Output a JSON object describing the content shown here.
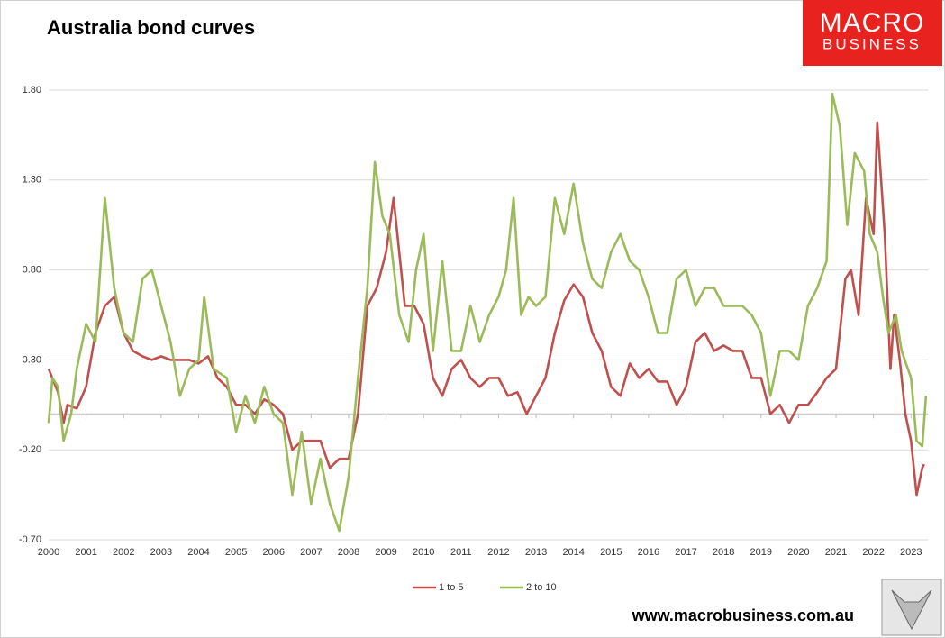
{
  "chart_data": {
    "type": "line",
    "title": "Australia bond curves",
    "brand": {
      "line1": "MACRO",
      "line2": "BUSINESS",
      "website": "www.macrobusiness.com.au"
    },
    "xlim": [
      2000,
      2023.45
    ],
    "xticks": [
      2000,
      2001,
      2002,
      2003,
      2004,
      2005,
      2006,
      2007,
      2008,
      2009,
      2010,
      2011,
      2012,
      2013,
      2014,
      2015,
      2016,
      2017,
      2018,
      2019,
      2020,
      2021,
      2022,
      2023
    ],
    "ylim": [
      -0.7,
      1.8
    ],
    "yticks": [
      {
        "value": 1.8,
        "label": "1.80"
      },
      {
        "value": 1.3,
        "label": "1.30"
      },
      {
        "value": 0.8,
        "label": "0.80"
      },
      {
        "value": 0.3,
        "label": "0.30"
      },
      {
        "value": -0.2,
        "label": "-0.20"
      },
      {
        "value": -0.7,
        "label": "-0.70"
      }
    ],
    "grid": true,
    "legend": "bottom",
    "series": [
      {
        "name": "1 to 5",
        "color": "#c0504d",
        "x": [
          2000,
          2000.25,
          2000.4,
          2000.5,
          2000.75,
          2001,
          2001.25,
          2001.5,
          2001.75,
          2002,
          2002.25,
          2002.5,
          2002.75,
          2003,
          2003.25,
          2003.5,
          2003.75,
          2004,
          2004.25,
          2004.5,
          2004.75,
          2005,
          2005.25,
          2005.5,
          2005.75,
          2006,
          2006.25,
          2006.5,
          2006.75,
          2007,
          2007.25,
          2007.5,
          2007.75,
          2008,
          2008.25,
          2008.5,
          2008.75,
          2009,
          2009.2,
          2009.5,
          2009.75,
          2010,
          2010.25,
          2010.5,
          2010.75,
          2011,
          2011.25,
          2011.5,
          2011.75,
          2012,
          2012.25,
          2012.5,
          2012.75,
          2013,
          2013.25,
          2013.5,
          2013.75,
          2014,
          2014.25,
          2014.5,
          2014.75,
          2015,
          2015.25,
          2015.5,
          2015.75,
          2016,
          2016.25,
          2016.5,
          2016.75,
          2017,
          2017.25,
          2017.5,
          2017.75,
          2018,
          2018.25,
          2018.5,
          2018.75,
          2019,
          2019.25,
          2019.5,
          2019.75,
          2020,
          2020.25,
          2020.5,
          2020.75,
          2021,
          2021.25,
          2021.4,
          2021.6,
          2021.8,
          2022,
          2022.1,
          2022.3,
          2022.45,
          2022.55,
          2022.7,
          2022.85,
          2023,
          2023.15,
          2023.3,
          2023.35
        ],
        "values": [
          0.25,
          0.12,
          -0.05,
          0.05,
          0.03,
          0.15,
          0.45,
          0.6,
          0.65,
          0.45,
          0.35,
          0.32,
          0.3,
          0.32,
          0.3,
          0.3,
          0.3,
          0.28,
          0.32,
          0.2,
          0.15,
          0.05,
          0.05,
          0.0,
          0.08,
          0.05,
          0.0,
          -0.2,
          -0.15,
          -0.15,
          -0.15,
          -0.3,
          -0.25,
          -0.25,
          0.0,
          0.6,
          0.7,
          0.9,
          1.2,
          0.6,
          0.6,
          0.5,
          0.2,
          0.1,
          0.25,
          0.3,
          0.2,
          0.15,
          0.2,
          0.2,
          0.1,
          0.12,
          0.0,
          0.1,
          0.2,
          0.45,
          0.63,
          0.72,
          0.65,
          0.45,
          0.35,
          0.15,
          0.1,
          0.28,
          0.2,
          0.25,
          0.18,
          0.18,
          0.05,
          0.15,
          0.4,
          0.45,
          0.35,
          0.38,
          0.35,
          0.35,
          0.2,
          0.2,
          0.0,
          0.05,
          -0.05,
          0.05,
          0.05,
          0.12,
          0.2,
          0.25,
          0.75,
          0.8,
          0.55,
          1.2,
          1.0,
          1.62,
          1.0,
          0.25,
          0.55,
          0.3,
          0.0,
          -0.15,
          -0.45,
          -0.3,
          -0.28
        ]
      },
      {
        "name": "2 to 10",
        "color": "#9bbb59",
        "x": [
          2000,
          2000.1,
          2000.25,
          2000.4,
          2000.6,
          2000.75,
          2001,
          2001.25,
          2001.5,
          2001.75,
          2002,
          2002.25,
          2002.5,
          2002.75,
          2003,
          2003.25,
          2003.5,
          2003.75,
          2004,
          2004.15,
          2004.4,
          2004.75,
          2005,
          2005.25,
          2005.5,
          2005.75,
          2006,
          2006.25,
          2006.5,
          2006.75,
          2007,
          2007.25,
          2007.5,
          2007.75,
          2008,
          2008.25,
          2008.5,
          2008.7,
          2008.9,
          2009.1,
          2009.35,
          2009.6,
          2009.8,
          2010,
          2010.25,
          2010.5,
          2010.75,
          2011,
          2011.25,
          2011.5,
          2011.75,
          2012,
          2012.2,
          2012.4,
          2012.6,
          2012.8,
          2013,
          2013.25,
          2013.5,
          2013.75,
          2014,
          2014.25,
          2014.5,
          2014.75,
          2015,
          2015.25,
          2015.5,
          2015.75,
          2016,
          2016.25,
          2016.5,
          2016.75,
          2017,
          2017.25,
          2017.5,
          2017.75,
          2018,
          2018.25,
          2018.5,
          2018.75,
          2019,
          2019.25,
          2019.5,
          2019.75,
          2020,
          2020.25,
          2020.5,
          2020.75,
          2020.9,
          2021.1,
          2021.3,
          2021.5,
          2021.75,
          2021.9,
          2022.1,
          2022.25,
          2022.4,
          2022.6,
          2022.75,
          2023,
          2023.15,
          2023.3,
          2023.4
        ],
        "values": [
          -0.05,
          0.2,
          0.15,
          -0.15,
          0.0,
          0.25,
          0.5,
          0.4,
          1.2,
          0.7,
          0.45,
          0.4,
          0.75,
          0.8,
          0.6,
          0.4,
          0.1,
          0.25,
          0.3,
          0.65,
          0.25,
          0.2,
          -0.1,
          0.1,
          -0.05,
          0.15,
          0.0,
          -0.05,
          -0.45,
          -0.1,
          -0.5,
          -0.25,
          -0.5,
          -0.65,
          -0.35,
          0.2,
          0.7,
          1.4,
          1.1,
          1.0,
          0.55,
          0.4,
          0.8,
          1.0,
          0.35,
          0.85,
          0.35,
          0.35,
          0.6,
          0.4,
          0.55,
          0.65,
          0.8,
          1.2,
          0.55,
          0.65,
          0.6,
          0.65,
          1.2,
          1.0,
          1.28,
          0.95,
          0.75,
          0.7,
          0.9,
          1.0,
          0.85,
          0.8,
          0.65,
          0.45,
          0.45,
          0.75,
          0.8,
          0.6,
          0.7,
          0.7,
          0.6,
          0.6,
          0.6,
          0.55,
          0.45,
          0.1,
          0.35,
          0.35,
          0.3,
          0.6,
          0.7,
          0.85,
          1.78,
          1.6,
          1.05,
          1.45,
          1.35,
          1.0,
          0.9,
          0.65,
          0.45,
          0.55,
          0.35,
          0.2,
          -0.15,
          -0.18,
          0.1
        ]
      }
    ]
  }
}
